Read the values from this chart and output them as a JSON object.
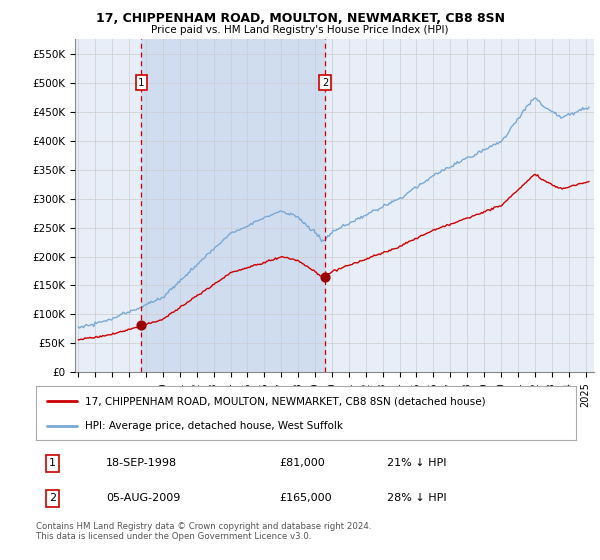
{
  "title1": "17, CHIPPENHAM ROAD, MOULTON, NEWMARKET, CB8 8SN",
  "title2": "Price paid vs. HM Land Registry's House Price Index (HPI)",
  "ylabel_ticks": [
    "£0",
    "£50K",
    "£100K",
    "£150K",
    "£200K",
    "£250K",
    "£300K",
    "£350K",
    "£400K",
    "£450K",
    "£500K",
    "£550K"
  ],
  "ylabel_values": [
    0,
    50000,
    100000,
    150000,
    200000,
    250000,
    300000,
    350000,
    400000,
    450000,
    500000,
    550000
  ],
  "ylim": [
    0,
    575000
  ],
  "xlim_start": 1994.8,
  "xlim_end": 2025.5,
  "purchase1_date": 1998.72,
  "purchase1_price": 81000,
  "purchase2_date": 2009.59,
  "purchase2_price": 165000,
  "legend_line1": "17, CHIPPENHAM ROAD, MOULTON, NEWMARKET, CB8 8SN (detached house)",
  "legend_line2": "HPI: Average price, detached house, West Suffolk",
  "annotation1_label": "1",
  "annotation1_date": "18-SEP-1998",
  "annotation1_price": "£81,000",
  "annotation1_hpi": "21% ↓ HPI",
  "annotation2_label": "2",
  "annotation2_date": "05-AUG-2009",
  "annotation2_price": "£165,000",
  "annotation2_hpi": "28% ↓ HPI",
  "footer": "Contains HM Land Registry data © Crown copyright and database right 2024.\nThis data is licensed under the Open Government Licence v3.0.",
  "bg_color": "#e8eef8",
  "shade_color": "#d0dcf0",
  "grid_color": "#cccccc",
  "hpi_line_color": "#7aa8d4",
  "price_line_color": "#cc0000",
  "vline_color": "#cc0000",
  "purchase_dot_color": "#990000",
  "box_color": "#cc0000",
  "white": "#ffffff"
}
